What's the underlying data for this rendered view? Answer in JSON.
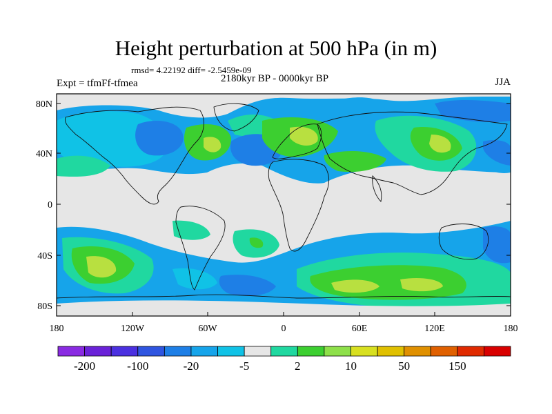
{
  "title": "Height perturbation at 500 hPa (in m)",
  "stats": "rmsd= 4.22192 diff= -2.5459e-09",
  "left_label": "Expt = tfmFf-tfmea",
  "center_label": "2180kyr BP - 0000kyr BP",
  "right_label": "JJA",
  "lat_ticks": [
    "80N",
    "40N",
    "0",
    "40S",
    "80S"
  ],
  "lon_ticks": [
    "180",
    "120W",
    "60W",
    "0",
    "60E",
    "120E",
    "180"
  ],
  "colorbar": {
    "colors": [
      "#8a2be2",
      "#6a22d8",
      "#4b30e0",
      "#2f55e0",
      "#1e7fe6",
      "#16a4ea",
      "#10c2e6",
      "#e6e6e6",
      "#20d8a0",
      "#3ccf30",
      "#8ee04a",
      "#d8e020",
      "#e0c000",
      "#e09000",
      "#e06000",
      "#e02a00",
      "#d80000"
    ],
    "labels": [
      "-200",
      "-100",
      "-20",
      "-5",
      "2",
      "10",
      "50",
      "150"
    ],
    "label_colors": [
      1,
      3,
      5,
      7,
      9,
      11,
      13,
      15
    ]
  },
  "palette": {
    "neutral": "#e6e6e6",
    "blue_light": "#16a4ea",
    "blue_mid": "#1e7fe6",
    "cyan": "#10c2e6",
    "teal": "#20d8a0",
    "green": "#3ccf30",
    "yellowgreen": "#b8e040",
    "coast": "#111111"
  }
}
